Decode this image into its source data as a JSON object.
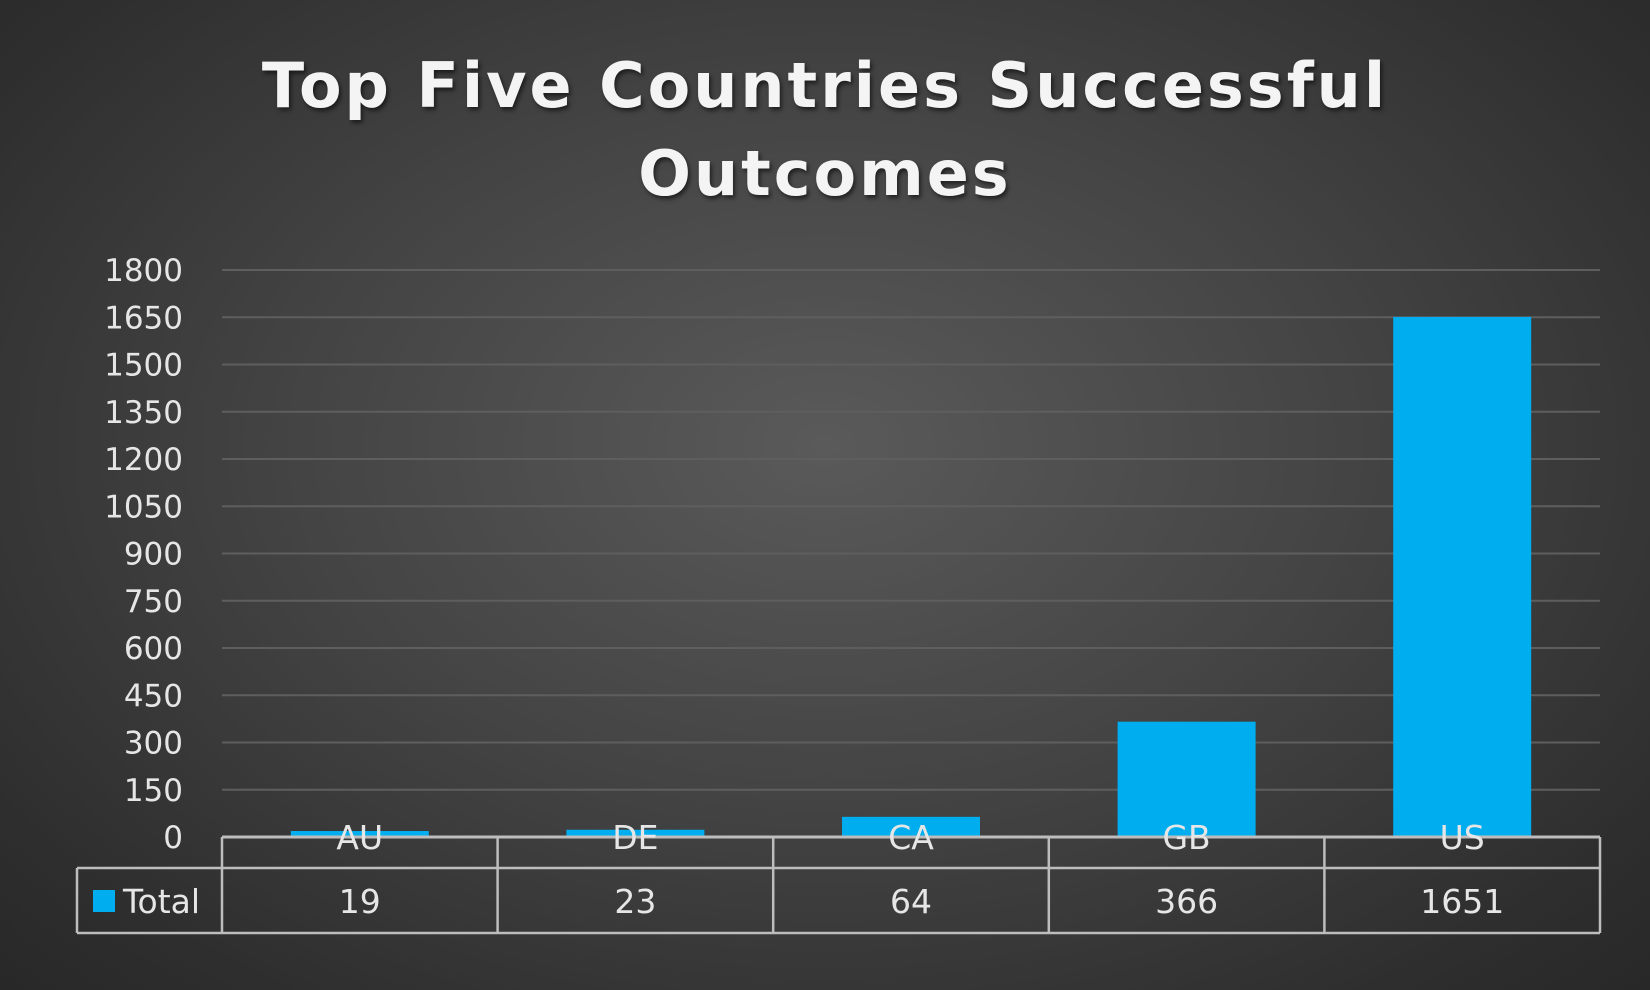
{
  "chart_data": {
    "type": "bar",
    "title_lines": [
      "Top Five Countries Successful",
      "Outcomes"
    ],
    "categories": [
      "AU",
      "DE",
      "CA",
      "GB",
      "US"
    ],
    "series": [
      {
        "name": "Total",
        "values": [
          19,
          23,
          64,
          366,
          1651
        ],
        "color": "#00adef"
      }
    ],
    "ylim": [
      0,
      1800
    ],
    "yticks": [
      0,
      150,
      300,
      450,
      600,
      750,
      900,
      1050,
      1200,
      1350,
      1500,
      1650,
      1800
    ],
    "xlabel": "",
    "ylabel": "",
    "grid": true,
    "legend": "data-table",
    "data_table": true
  },
  "colors": {
    "background": "#3c3c3c",
    "gridline": "#5e5e5e",
    "text": "#e6e6e6",
    "bar": "#00adef",
    "table_border": "#bdbdbd"
  }
}
